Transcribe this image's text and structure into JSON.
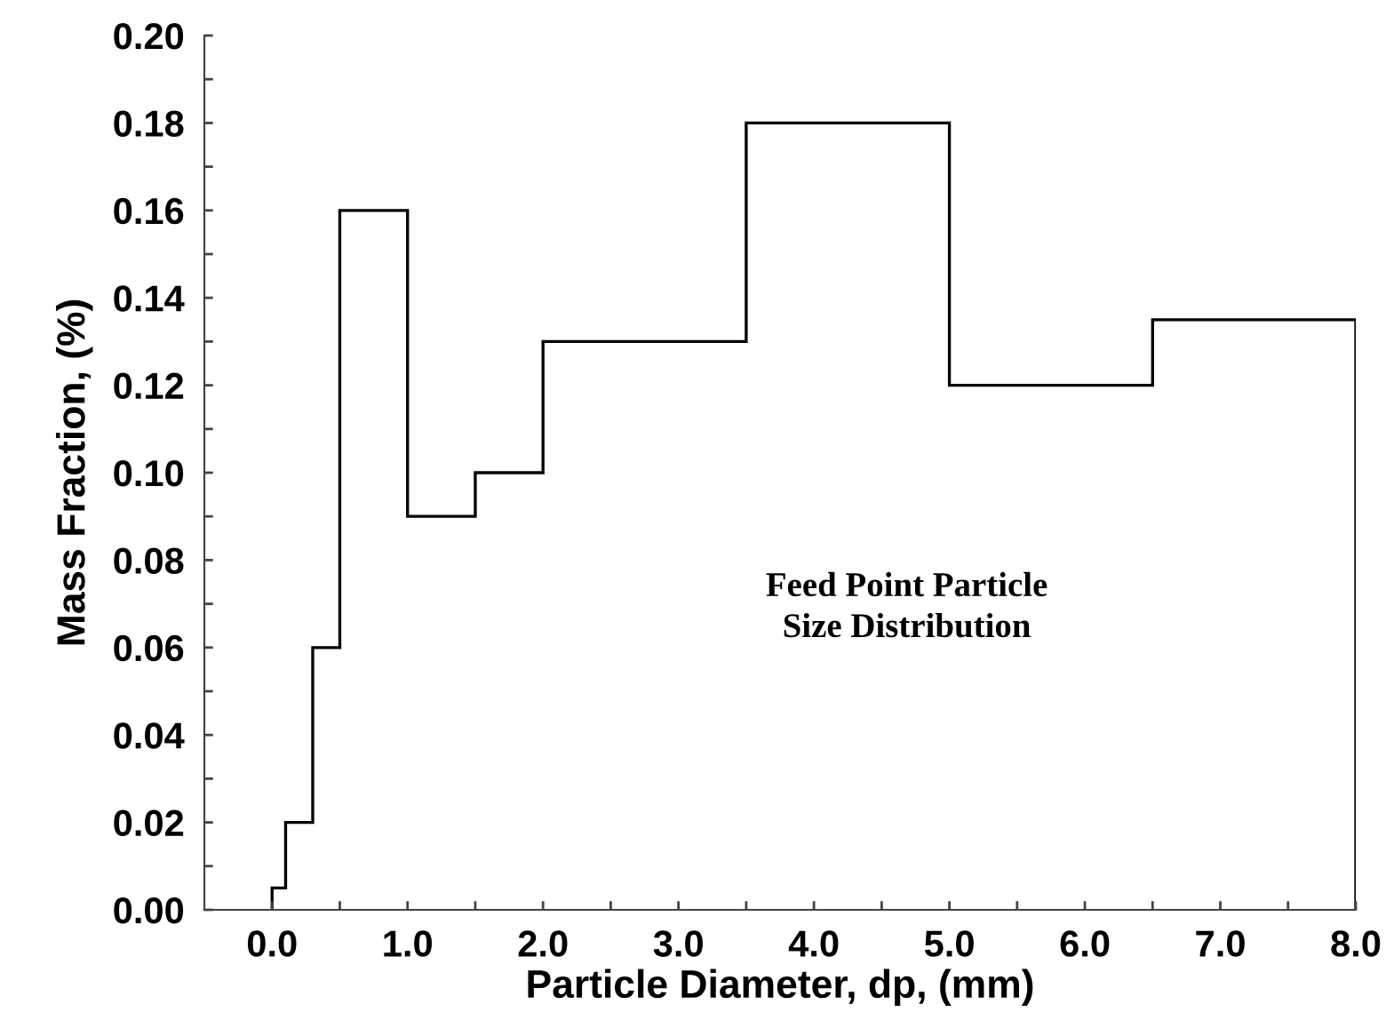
{
  "chart_data": {
    "type": "histogram",
    "xlabel": "Particle Diameter, dp, (mm)",
    "ylabel": "Mass Fraction, (%)",
    "bins": [
      0,
      0.1,
      0.3,
      0.5,
      1.0,
      1.5,
      2.0,
      3.5,
      5.0,
      6.5,
      8.0
    ],
    "values": [
      0.005,
      0.02,
      0.06,
      0.16,
      0.09,
      0.1,
      0.13,
      0.18,
      0.12,
      0.135
    ],
    "color": "#000000",
    "xlim": [
      -0.5,
      8.0
    ],
    "xticks": [
      {
        "value": 0,
        "label": "0.0"
      },
      {
        "value": 0.5,
        "label": null
      },
      {
        "value": 1,
        "label": "1.0"
      },
      {
        "value": 1.5,
        "label": null
      },
      {
        "value": 2,
        "label": "2.0"
      },
      {
        "value": 2.5,
        "label": null
      },
      {
        "value": 3,
        "label": "3.0"
      },
      {
        "value": 3.5,
        "label": null
      },
      {
        "value": 4,
        "label": "4.0"
      },
      {
        "value": 4.5,
        "label": null
      },
      {
        "value": 5,
        "label": "5.0"
      },
      {
        "value": 5.5,
        "label": null
      },
      {
        "value": 6,
        "label": "6.0"
      },
      {
        "value": 6.5,
        "label": null
      },
      {
        "value": 7,
        "label": "7.0"
      },
      {
        "value": 7.5,
        "label": null
      },
      {
        "value": 8,
        "label": "8.0"
      }
    ],
    "ylim": [
      0,
      0.2
    ],
    "yticks": [
      {
        "value": 0,
        "label": "0.00"
      },
      {
        "value": 0.01,
        "label": null
      },
      {
        "value": 0.02,
        "label": "0.02"
      },
      {
        "value": 0.03,
        "label": null
      },
      {
        "value": 0.04,
        "label": "0.04"
      },
      {
        "value": 0.05,
        "label": null
      },
      {
        "value": 0.06,
        "label": "0.06"
      },
      {
        "value": 0.07,
        "label": null
      },
      {
        "value": 0.08,
        "label": "0.08"
      },
      {
        "value": 0.09,
        "label": null
      },
      {
        "value": 0.1,
        "label": "0.10"
      },
      {
        "value": 0.11,
        "label": null
      },
      {
        "value": 0.12,
        "label": "0.12"
      },
      {
        "value": 0.13,
        "label": null
      },
      {
        "value": 0.14,
        "label": "0.14"
      },
      {
        "value": 0.15,
        "label": null
      },
      {
        "value": 0.16,
        "label": "0.16"
      },
      {
        "value": 0.17,
        "label": null
      },
      {
        "value": 0.18,
        "label": "0.18"
      },
      {
        "value": 0.19,
        "label": null
      },
      {
        "value": 0.2,
        "label": "0.20"
      }
    ],
    "grid": false,
    "annotations": [
      "Feed Point Particle\nSize Distribution"
    ]
  }
}
